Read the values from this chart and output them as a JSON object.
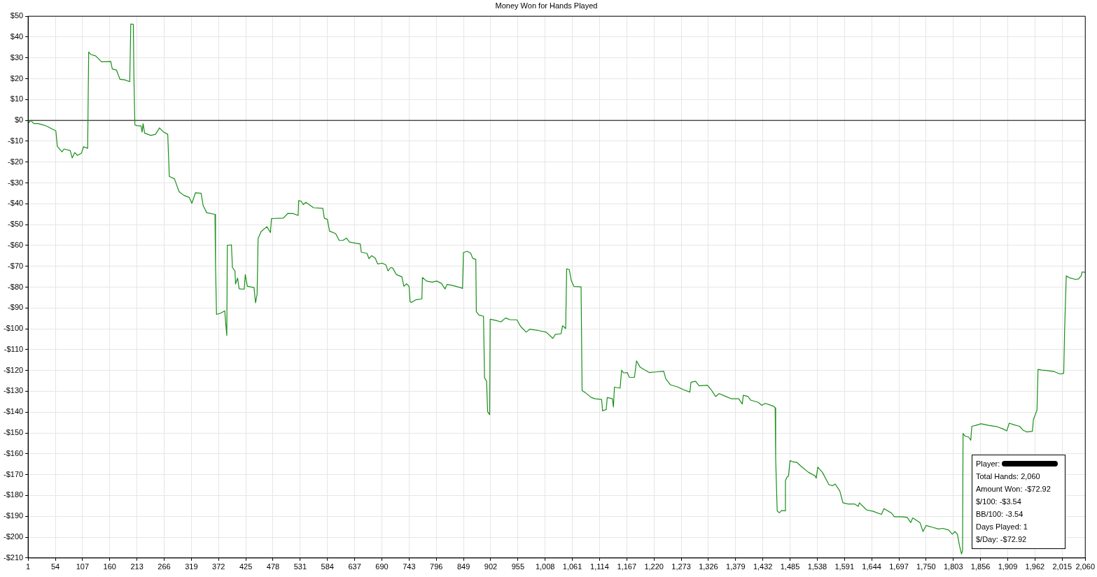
{
  "chart_data": {
    "type": "line",
    "title": "Money Won for Hands Played",
    "x": [
      1,
      3,
      6,
      12,
      20,
      28,
      37,
      46,
      55,
      58,
      67,
      71,
      83,
      87,
      92,
      97,
      105,
      109,
      117,
      119,
      123,
      133,
      144,
      162,
      165,
      173,
      180,
      189,
      199,
      201,
      206,
      207,
      209,
      213,
      221,
      223,
      225,
      228,
      240,
      249,
      257,
      265,
      273,
      276,
      286,
      295,
      304,
      315,
      320,
      327,
      338,
      342,
      349,
      365,
      366,
      368,
      376,
      384,
      386,
      388,
      389,
      397,
      399,
      404,
      405,
      409,
      412,
      422,
      424,
      428,
      441,
      444,
      447,
      449,
      455,
      466,
      473,
      475,
      498,
      507,
      517,
      527,
      528,
      533,
      537,
      542,
      557,
      575,
      578,
      584,
      588,
      600,
      607,
      614,
      621,
      627,
      648,
      650,
      661,
      665,
      670,
      677,
      682,
      691,
      698,
      702,
      707,
      711,
      718,
      729,
      733,
      738,
      743,
      745,
      747,
      756,
      768,
      769,
      777,
      788,
      797,
      806,
      813,
      817,
      829,
      845,
      847,
      849,
      856,
      863,
      867,
      873,
      874,
      879,
      888,
      890,
      894,
      896,
      900,
      901,
      912,
      922,
      931,
      940,
      953,
      960,
      971,
      978,
      994,
      1010,
      1023,
      1028,
      1039,
      1042,
      1048,
      1050,
      1055,
      1059,
      1064,
      1078,
      1080,
      1087,
      1098,
      1105,
      1118,
      1120,
      1127,
      1129,
      1139,
      1141,
      1143,
      1154,
      1157,
      1161,
      1168,
      1172,
      1182,
      1186,
      1193,
      1211,
      1224,
      1239,
      1243,
      1252,
      1267,
      1276,
      1290,
      1292,
      1301,
      1308,
      1324,
      1331,
      1340,
      1347,
      1360,
      1371,
      1385,
      1392,
      1394,
      1403,
      1408,
      1423,
      1430,
      1437,
      1453,
      1456,
      1457,
      1460,
      1464,
      1469,
      1475,
      1476,
      1479,
      1482,
      1485,
      1491,
      1498,
      1507,
      1521,
      1534,
      1536,
      1539,
      1548,
      1561,
      1568,
      1573,
      1582,
      1588,
      1598,
      1611,
      1618,
      1620,
      1634,
      1647,
      1663,
      1668,
      1683,
      1688,
      1702,
      1713,
      1720,
      1724,
      1738,
      1744,
      1750,
      1763,
      1774,
      1783,
      1794,
      1801,
      1806,
      1811,
      1815,
      1819,
      1821,
      1822,
      1826,
      1833,
      1837,
      1839,
      1846,
      1857,
      1873,
      1887,
      1900,
      1907,
      1912,
      1921,
      1932,
      1939,
      1946,
      1957,
      1959,
      1964,
      1966,
      1968,
      1975,
      1986,
      2000,
      2011,
      2018,
      2020,
      2023,
      2029,
      2041,
      2047,
      2052,
      2054,
      2060
    ],
    "values": [
      0,
      -1,
      0,
      -1.5,
      -1.5,
      -2,
      -2.7,
      -3.9,
      -5,
      -12.5,
      -15.1,
      -13.7,
      -14.5,
      -18,
      -15.4,
      -16.8,
      -15.7,
      -12.6,
      -13.4,
      32.8,
      31.7,
      30.9,
      28.1,
      28.3,
      24.7,
      24.2,
      19.7,
      19.5,
      18.6,
      46.3,
      46.1,
      22,
      -2.2,
      -2.5,
      -2.7,
      -5.6,
      -1.6,
      -6.1,
      -7.2,
      -6.7,
      -3.6,
      -5.6,
      -6.7,
      -26.9,
      -28,
      -34.2,
      -35.9,
      -37,
      -39.8,
      -34.7,
      -35,
      -40.9,
      -44.3,
      -45.1,
      -69,
      -93.1,
      -92.5,
      -91.4,
      -97.6,
      -103.2,
      -60,
      -59.7,
      -70.6,
      -72.3,
      -78.5,
      -75.7,
      -80.8,
      -81,
      -74,
      -79.6,
      -80.2,
      -87.5,
      -83.5,
      -56.6,
      -53.3,
      -51,
      -53.8,
      -47.1,
      -46.9,
      -44.6,
      -44.7,
      -45.6,
      -38.5,
      -38.8,
      -40.4,
      -39.3,
      -41.9,
      -42.2,
      -47,
      -47.5,
      -53.1,
      -54.3,
      -57.6,
      -57.6,
      -56.5,
      -58.4,
      -59.3,
      -63.3,
      -63.8,
      -66.4,
      -64.9,
      -66.1,
      -68.9,
      -68.5,
      -69.4,
      -72.2,
      -70.6,
      -70.8,
      -73.9,
      -75.1,
      -79.6,
      -78.4,
      -79.6,
      -86.9,
      -87.4,
      -86.1,
      -85.7,
      -75.4,
      -77.1,
      -77.6,
      -77.1,
      -78.2,
      -80.9,
      -78.7,
      -79.3,
      -80.4,
      -80.7,
      -63.4,
      -62.8,
      -63.7,
      -66.2,
      -66.7,
      -91.8,
      -93.4,
      -94,
      -123.5,
      -125.2,
      -139.8,
      -141.2,
      -95.4,
      -96,
      -96.7,
      -94.8,
      -95.7,
      -95.7,
      -98.8,
      -101.6,
      -100.2,
      -100.8,
      -101.6,
      -104.6,
      -102.7,
      -102.4,
      -98.5,
      -99.9,
      -71.2,
      -71.6,
      -76.9,
      -79.7,
      -79.9,
      -129.7,
      -130.8,
      -133,
      -133.6,
      -133.9,
      -139.4,
      -138.7,
      -133,
      -133.6,
      -137.5,
      -128,
      -128.5,
      -119.9,
      -121.2,
      -121,
      -123.3,
      -123.3,
      -115.4,
      -118.4,
      -121,
      -120.7,
      -120.4,
      -124,
      -126.9,
      -128,
      -129.1,
      -130.4,
      -125.7,
      -125.2,
      -127.4,
      -127.1,
      -129.1,
      -132.5,
      -131.1,
      -132.5,
      -133.6,
      -133.6,
      -136.1,
      -131.9,
      -132.5,
      -134.2,
      -135.3,
      -136.7,
      -135.8,
      -137.2,
      -137.9,
      -162.2,
      -187.4,
      -188.3,
      -187.2,
      -187.4,
      -172.9,
      -171.2,
      -170.6,
      -163.3,
      -163.9,
      -164.1,
      -166.1,
      -168.9,
      -170.6,
      -171.7,
      -166.4,
      -168.9,
      -174.9,
      -175.3,
      -174.5,
      -177.9,
      -183.5,
      -184.1,
      -184.1,
      -185.2,
      -183.5,
      -186.9,
      -187.6,
      -189.1,
      -186.3,
      -188.5,
      -190.2,
      -190.2,
      -190.5,
      -193,
      -190.8,
      -193,
      -197.3,
      -194.4,
      -195.3,
      -196.1,
      -195.8,
      -196.6,
      -198.6,
      -197.3,
      -198.6,
      -204,
      -208.1,
      -206.4,
      -150.3,
      -151.5,
      -152,
      -153.5,
      -146.8,
      -146.4,
      -145.6,
      -146.4,
      -146.9,
      -148.1,
      -149,
      -145.3,
      -146.1,
      -146.8,
      -148.7,
      -149.5,
      -149.2,
      -143.6,
      -140.3,
      -139.1,
      -119.5,
      -119.8,
      -120.1,
      -120.6,
      -121.7,
      -121.4,
      -98.7,
      -74.6,
      -75.5,
      -76.3,
      -76.1,
      -74.6,
      -72.7,
      -72.9
    ],
    "color": "#1a8f1a",
    "xlim": [
      1,
      2060
    ],
    "xticks": [
      1,
      54,
      107,
      160,
      213,
      266,
      319,
      372,
      425,
      478,
      531,
      584,
      637,
      690,
      743,
      796,
      849,
      902,
      955,
      {
        "value": 1008,
        "label": "1,008"
      },
      {
        "value": 1061,
        "label": "1,061"
      },
      {
        "value": 1114,
        "label": "1,114"
      },
      {
        "value": 1167,
        "label": "1,167"
      },
      {
        "value": 1220,
        "label": "1,220"
      },
      {
        "value": 1273,
        "label": "1,273"
      },
      {
        "value": 1326,
        "label": "1,326"
      },
      {
        "value": 1379,
        "label": "1,379"
      },
      {
        "value": 1432,
        "label": "1,432"
      },
      {
        "value": 1485,
        "label": "1,485"
      },
      {
        "value": 1538,
        "label": "1,538"
      },
      {
        "value": 1591,
        "label": "1,591"
      },
      {
        "value": 1644,
        "label": "1,644"
      },
      {
        "value": 1697,
        "label": "1,697"
      },
      {
        "value": 1750,
        "label": "1,750"
      },
      {
        "value": 1803,
        "label": "1,803"
      },
      {
        "value": 1856,
        "label": "1,856"
      },
      {
        "value": 1909,
        "label": "1,909"
      },
      {
        "value": 1962,
        "label": "1,962"
      },
      {
        "value": 2015,
        "label": "2,015"
      },
      {
        "value": 2060,
        "label": "2,060"
      }
    ],
    "ylim": [
      -210,
      50
    ],
    "yticks": [
      {
        "value": 50,
        "label": "$50"
      },
      {
        "value": 40,
        "label": "$40"
      },
      {
        "value": 30,
        "label": "$30"
      },
      {
        "value": 20,
        "label": "$20"
      },
      {
        "value": 10,
        "label": "$10"
      },
      {
        "value": 0,
        "label": "$0"
      },
      {
        "value": -10,
        "label": "-$10"
      },
      {
        "value": -20,
        "label": "-$20"
      },
      {
        "value": -30,
        "label": "-$30"
      },
      {
        "value": -40,
        "label": "-$40"
      },
      {
        "value": -50,
        "label": "-$50"
      },
      {
        "value": -60,
        "label": "-$60"
      },
      {
        "value": -70,
        "label": "-$70"
      },
      {
        "value": -80,
        "label": "-$80"
      },
      {
        "value": -90,
        "label": "-$90"
      },
      {
        "value": -100,
        "label": "-$100"
      },
      {
        "value": -110,
        "label": "-$110"
      },
      {
        "value": -120,
        "label": "-$120"
      },
      {
        "value": -130,
        "label": "-$130"
      },
      {
        "value": -140,
        "label": "-$140"
      },
      {
        "value": -150,
        "label": "-$150"
      },
      {
        "value": -160,
        "label": "-$160"
      },
      {
        "value": -170,
        "label": "-$170"
      },
      {
        "value": -180,
        "label": "-$180"
      },
      {
        "value": -190,
        "label": "-$190"
      },
      {
        "value": -200,
        "label": "-$200"
      },
      {
        "value": -210,
        "label": "-$210"
      }
    ],
    "grid": true,
    "ref_lines": [
      {
        "axis": "y",
        "value": 0,
        "color": "#000000"
      }
    ],
    "annotations": [
      "Player:",
      "Total Hands: 2,060",
      "Amount Won: -$72.92",
      "$/100: -$3.54",
      "BB/100: -3.54",
      "Days Played: 1",
      "$/Day: -$72.92"
    ]
  }
}
